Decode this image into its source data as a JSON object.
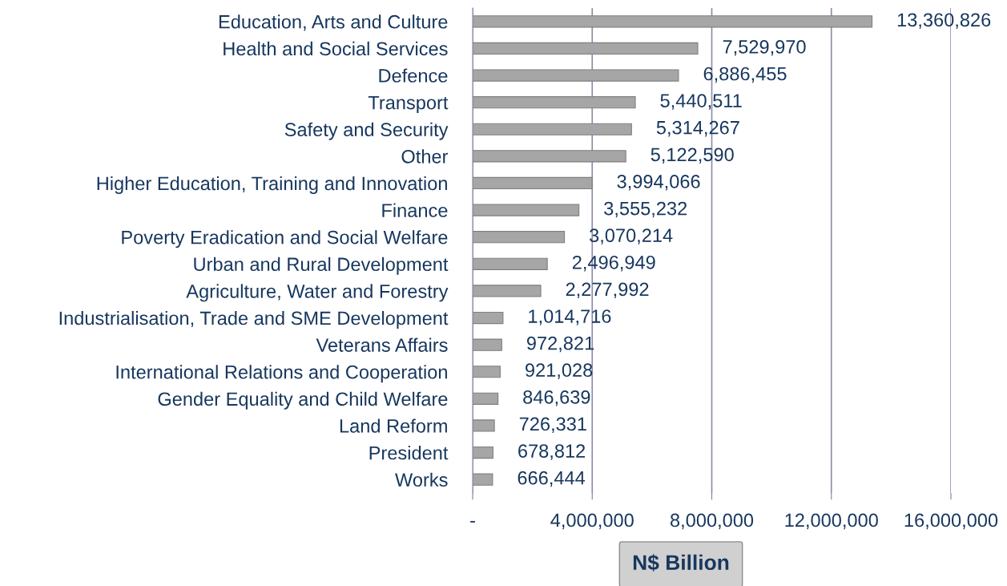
{
  "chart_data": {
    "type": "bar",
    "orientation": "horizontal",
    "xlabel": "N$ Billion",
    "categories": [
      "Education, Arts and Culture",
      "Health and Social Services",
      "Defence",
      "Transport",
      "Safety and Security",
      "Other",
      "Higher Education, Training and Innovation",
      "Finance",
      "Poverty Eradication and Social Welfare",
      "Urban and Rural Development",
      "Agriculture, Water and Forestry",
      "Industrialisation, Trade and SME Development",
      "Veterans Affairs",
      "International Relations and Cooperation",
      "Gender Equality and Child Welfare",
      "Land Reform",
      "President",
      "Works"
    ],
    "values": [
      13360826,
      7529970,
      6886455,
      5440511,
      5314267,
      5122590,
      3994066,
      3555232,
      3070214,
      2496949,
      2277992,
      1014716,
      972821,
      921028,
      846639,
      726331,
      678812,
      666444
    ],
    "value_labels": [
      "13,360,826",
      "7,529,970",
      "6,886,455",
      "5,440,511",
      "5,314,267",
      "5,122,590",
      "3,994,066",
      "3,555,232",
      "3,070,214",
      "2,496,949",
      "2,277,992",
      "1,014,716",
      "972,821",
      "921,028",
      "846,639",
      "726,331",
      "678,812",
      "666,444"
    ],
    "color": "#a6a6a6",
    "xlim": [
      0,
      16000000
    ],
    "xticks": [
      {
        "value": 0,
        "label": "-"
      },
      {
        "value": 4000000,
        "label": "4,000,000"
      },
      {
        "value": 8000000,
        "label": "8,000,000"
      },
      {
        "value": 12000000,
        "label": "12,000,000"
      },
      {
        "value": 16000000,
        "label": "16,000,000"
      }
    ],
    "grid": "x",
    "legend": false
  }
}
